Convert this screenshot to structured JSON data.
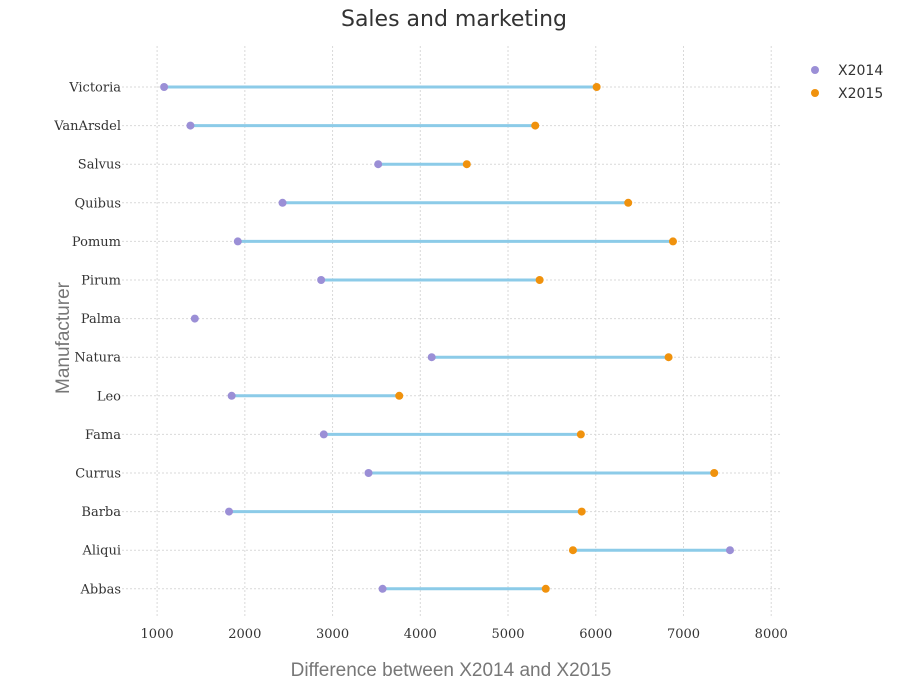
{
  "chart_data": {
    "type": "dumbbell",
    "title": "Sales and marketing",
    "xlabel": "Difference between X2014 and X2015",
    "ylabel": "Manufacturer",
    "xlim": [
      600,
      8100
    ],
    "xticks": [
      "1000",
      "2000",
      "3000",
      "4000",
      "5000",
      "6000",
      "7000",
      "8000"
    ],
    "grid": true,
    "legend_position": "top-right",
    "categories": [
      "Victoria",
      "VanArsdel",
      "Salvus",
      "Quibus",
      "Pomum",
      "Pirum",
      "Palma",
      "Natura",
      "Leo",
      "Fama",
      "Currus",
      "Barba",
      "Aliqui",
      "Abbas"
    ],
    "series": [
      {
        "name": "X2014",
        "color": "#9b8fd6",
        "values": [
          1080,
          1380,
          3520,
          2430,
          1920,
          2870,
          1430,
          4130,
          1850,
          2900,
          3410,
          1820,
          7530,
          3570
        ]
      },
      {
        "name": "X2015",
        "color": "#f0920d",
        "values": [
          6010,
          5310,
          4530,
          6370,
          6880,
          5360,
          null,
          6830,
          3760,
          5830,
          7350,
          5840,
          5740,
          5430
        ]
      }
    ],
    "connector_color": "#8ccbe8"
  }
}
